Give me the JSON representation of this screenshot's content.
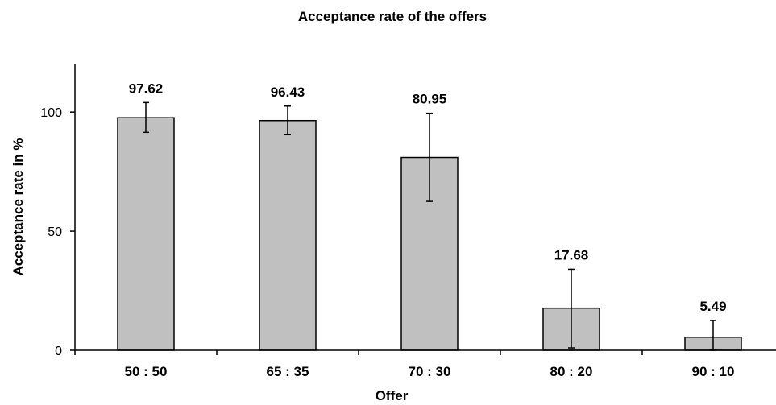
{
  "chart_data": {
    "type": "bar",
    "title": "Acceptance rate of the offers",
    "xlabel": "Offer",
    "ylabel": "Acceptance rate in %",
    "categories": [
      "50 : 50",
      "65 : 35",
      "70 : 30",
      "80 : 20",
      "90 : 10"
    ],
    "values": [
      97.62,
      96.43,
      80.95,
      17.68,
      5.49
    ],
    "data_labels": [
      "97.62",
      "96.43",
      "80.95",
      "17.68",
      "5.49"
    ],
    "error_bars": [
      {
        "low": 91.5,
        "high": 104.0
      },
      {
        "low": 90.5,
        "high": 102.5
      },
      {
        "low": 62.5,
        "high": 99.5
      },
      {
        "low": 1.0,
        "high": 34.0
      },
      {
        "low": 0.0,
        "high": 12.5
      }
    ],
    "ylim": [
      0,
      120
    ],
    "yticks": [
      0,
      50,
      100
    ],
    "ytick_labels": [
      "0",
      "50",
      "100"
    ],
    "grid": false,
    "legend": "none",
    "colors": {
      "bar_fill": "#c0c0c0",
      "bar_stroke": "#000000",
      "axis": "#000000",
      "error_bar": "#000000"
    }
  }
}
